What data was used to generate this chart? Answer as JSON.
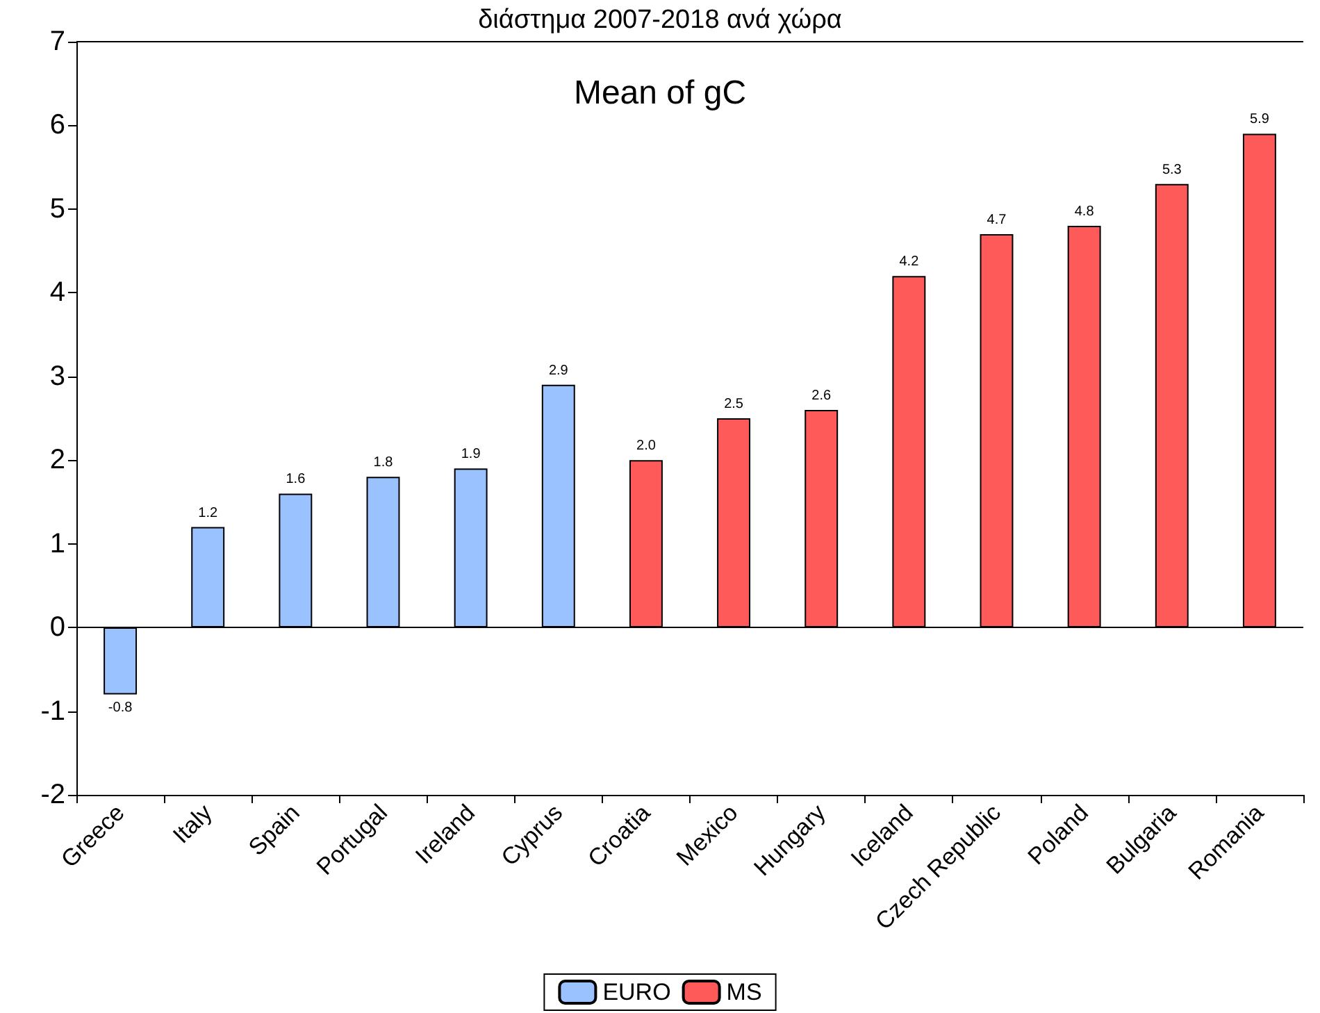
{
  "chart_data": {
    "type": "bar",
    "title": "διάστημα 2007-2018 ανά χώρα",
    "subtitle": "Mean of gC",
    "categories": [
      "Greece",
      "Italy",
      "Spain",
      "Portugal",
      "Ireland",
      "Cyprus",
      "Croatia",
      "Mexico",
      "Hungary",
      "Iceland",
      "Czech Republic",
      "Poland",
      "Bulgaria",
      "Romania"
    ],
    "series": [
      {
        "name": "EURO",
        "color": "#99c2ff",
        "values": [
          -0.8,
          1.2,
          1.6,
          1.8,
          1.9,
          2.9,
          null,
          null,
          null,
          null,
          null,
          null,
          null,
          null
        ],
        "value_labels": [
          "-0.8",
          "1.2",
          "1.6",
          "1.8",
          "1.9",
          "2.9",
          null,
          null,
          null,
          null,
          null,
          null,
          null,
          null
        ]
      },
      {
        "name": "MS",
        "color": "#ff5a5a",
        "values": [
          null,
          null,
          null,
          null,
          null,
          null,
          2.0,
          2.5,
          2.6,
          4.2,
          4.7,
          4.8,
          5.3,
          5.9
        ],
        "value_labels": [
          null,
          null,
          null,
          null,
          null,
          null,
          "2.0",
          "2.5",
          "2.6",
          "4.2",
          "4.7",
          "4.8",
          "5.3",
          "5.9"
        ]
      }
    ],
    "ref_lines": [
      {
        "axis": "y",
        "value": 0
      }
    ],
    "ylim": [
      -2,
      7
    ],
    "yticks": [
      -2,
      -1,
      0,
      1,
      2,
      3,
      4,
      5,
      6,
      7
    ],
    "legend": "bottom"
  }
}
